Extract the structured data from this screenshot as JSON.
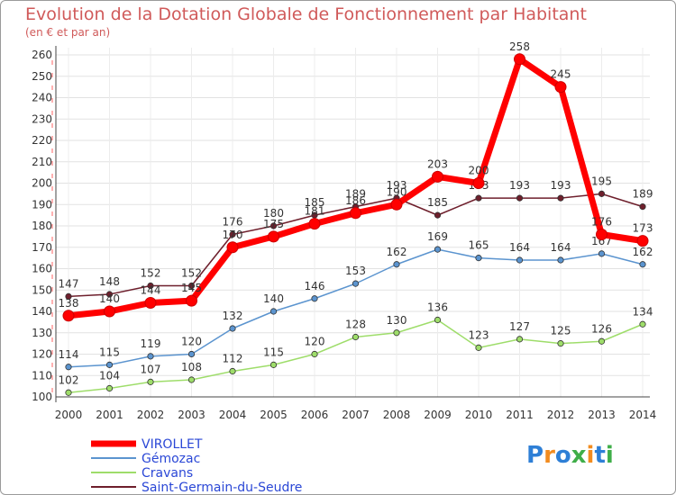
{
  "header": {
    "title": "Evolution de la Dotation Globale de Fonctionnement par Habitant",
    "subtitle": "(en € et par an)"
  },
  "chart_data": {
    "type": "line",
    "title": "Evolution de la Dotation Globale de Fonctionnement par Habitant",
    "subtitle": "(en € et par an)",
    "xlabel": "",
    "ylabel": "",
    "x": [
      "2000",
      "2001",
      "2002",
      "2003",
      "2004",
      "2005",
      "2006",
      "2007",
      "2008",
      "2009",
      "2010",
      "2011",
      "2012",
      "2013",
      "2014"
    ],
    "ylim": [
      100,
      260
    ],
    "yticks": [
      100,
      110,
      120,
      130,
      140,
      150,
      160,
      170,
      180,
      190,
      200,
      210,
      220,
      230,
      240,
      250,
      260
    ],
    "grid": true,
    "legend_position": "bottom-left",
    "series": [
      {
        "name": "Saint-Germain-du-Seudre",
        "color": "#6e1f2c",
        "values": [
          147,
          148,
          152,
          152,
          176,
          180,
          185,
          189,
          193,
          185,
          193,
          193,
          193,
          195,
          189
        ]
      },
      {
        "name": "Gémozac",
        "color": "#5b94cf",
        "values": [
          114,
          115,
          119,
          120,
          132,
          140,
          146,
          153,
          162,
          169,
          165,
          164,
          164,
          167,
          162
        ]
      },
      {
        "name": "Cravans",
        "color": "#9edd6a",
        "values": [
          102,
          104,
          107,
          108,
          112,
          115,
          120,
          128,
          130,
          136,
          123,
          127,
          125,
          126,
          134
        ]
      },
      {
        "name": "VIROLLET",
        "color": "#ff0000",
        "values": [
          138,
          140,
          144,
          145,
          170,
          175,
          181,
          186,
          190,
          203,
          200,
          258,
          245,
          176,
          173
        ]
      }
    ],
    "legend_order": [
      "VIROLLET",
      "Gémozac",
      "Cravans",
      "Saint-Germain-du-Seudre"
    ]
  },
  "logo": {
    "text": "Proxiti",
    "colors": [
      "#2e7fd6",
      "#f28c1f",
      "#2e7fd6",
      "#3fae49",
      "#f28c1f",
      "#2e7fd6",
      "#3fae49"
    ]
  }
}
